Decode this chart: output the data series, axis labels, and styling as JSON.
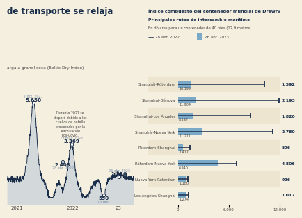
{
  "background_color": "#f5efe0",
  "title_left": "de transporte se relaja",
  "subtitle_left": "arga a granel seca (Baltic Dry Index)",
  "line_color": "#1a2e4a",
  "fill_color": "#b8c8d8",
  "annotation_text": "Durante 2021 se\ndisparó debido a los\ncuellos de botella\nprovocados por la\nreactivación\npos-Covid.",
  "xtick_labels": [
    "2021",
    "2022",
    "23"
  ],
  "right_title1": "Índice compuesto del contenedor mundial de Drewry",
  "right_title2": "Principales rutas de intercambio marítimo",
  "right_subtitle": "En dólares para un contenedor de 40 pies (12,9 metros)",
  "legend_date1": "28 abr. 2022",
  "legend_date2": "26 abr. 2023",
  "routes": [
    "Shanghái-Róterdam",
    "Shanghái-Génova",
    "Shanghái-Los Ángeles",
    "Shanghái-Nueva York",
    "Róterdam-Shanghái",
    "Róterdam-Nueva York",
    "Nueva York-Róterdam",
    "Los Ángeles-Shanghái"
  ],
  "val_2022": [
    10199,
    11904,
    8587,
    11211,
    1417,
    6940,
    1180,
    1274
  ],
  "val_2023": [
    1592,
    2193,
    1820,
    2780,
    596,
    4806,
    926,
    1017
  ],
  "val_2022_labels": [
    "10.199",
    "11.904",
    "8.587",
    "11.211",
    "1.417",
    "6.940",
    "1.180",
    "1.274"
  ],
  "val_2023_labels": [
    "1.592",
    "2.193",
    "1.820",
    "2.780",
    "596",
    "4.806",
    "926",
    "1.017"
  ],
  "bar_color": "#7aaac8",
  "line_marker_color": "#1a2e4a",
  "row_alt_color": "#ede5d0",
  "label_color": "#7a8fa8",
  "value_color": "#1a2e4a",
  "text_color": "#444444"
}
